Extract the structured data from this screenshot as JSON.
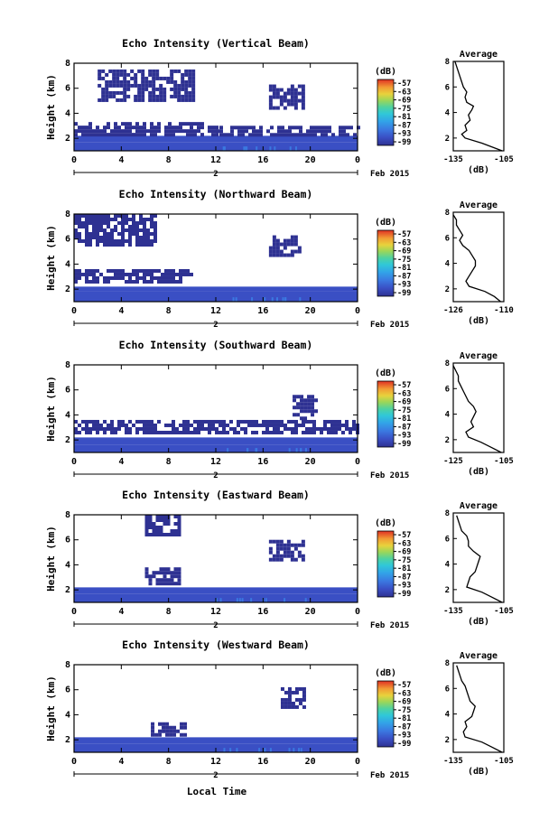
{
  "chart_data": [
    {
      "type": "heatmap",
      "title": "Echo Intensity (Vertical Beam)",
      "ylabel": "Height (km)",
      "xlabel": "",
      "x_ticks": [
        "0",
        "4",
        "8",
        "12",
        "16",
        "20",
        "0"
      ],
      "date_tick": "2",
      "date_label": "Feb 2015",
      "y_ticks": [
        "2",
        "4",
        "6",
        "8"
      ],
      "xlim": [
        0,
        24
      ],
      "ylim": [
        1,
        8
      ],
      "colorbar": {
        "unit": "(dB)",
        "ticks": [
          "-57",
          "-63",
          "-69",
          "-75",
          "-81",
          "-87",
          "-93",
          "-99"
        ]
      },
      "regions": [
        {
          "t": [
            0,
            24
          ],
          "h": [
            1.0,
            1.7
          ],
          "value": -93
        },
        {
          "t": [
            0,
            24
          ],
          "h": [
            1.7,
            2.2
          ],
          "value": -96
        },
        {
          "t": [
            0,
            12
          ],
          "h": [
            2.3,
            3.3
          ],
          "value": -98
        },
        {
          "t": [
            12,
            24
          ],
          "h": [
            2.4,
            3.0
          ],
          "value": -98
        },
        {
          "t": [
            2,
            10
          ],
          "h": [
            5.0,
            7.5
          ],
          "value": -98
        },
        {
          "t": [
            16.5,
            19.5
          ],
          "h": [
            4.5,
            6.3
          ],
          "value": -98
        }
      ],
      "average_profile": {
        "title": "Average",
        "xlabel": "(dB)",
        "x_ticks": [
          "-135",
          "-105"
        ],
        "y_ticks": [
          "2",
          "4",
          "6",
          "8"
        ],
        "xlim": [
          -135,
          -105
        ],
        "ylim": [
          1,
          8
        ],
        "height": [
          1,
          1.3,
          1.6,
          2.0,
          2.3,
          2.6,
          3.0,
          3.4,
          3.8,
          4.2,
          4.5,
          4.8,
          5.2,
          5.6,
          6.0,
          6.4,
          6.8,
          7.2,
          7.6,
          8.0
        ],
        "db": [
          -106,
          -112,
          -118,
          -128,
          -130,
          -127,
          -128,
          -125,
          -126,
          -124,
          -123,
          -127,
          -128,
          -127,
          -129,
          -130,
          -131,
          -132,
          -133,
          -134
        ]
      }
    },
    {
      "type": "heatmap",
      "title": "Echo Intensity (Northward Beam)",
      "ylabel": "Height (km)",
      "xlabel": "",
      "x_ticks": [
        "0",
        "4",
        "8",
        "12",
        "16",
        "20",
        "0"
      ],
      "date_tick": "2",
      "date_label": "Feb 2015",
      "y_ticks": [
        "2",
        "4",
        "6",
        "8"
      ],
      "xlim": [
        0,
        24
      ],
      "ylim": [
        1,
        8
      ],
      "colorbar": {
        "unit": "(dB)",
        "ticks": [
          "-57",
          "-63",
          "-69",
          "-75",
          "-81",
          "-87",
          "-93",
          "-99"
        ]
      },
      "regions": [
        {
          "t": [
            0,
            24
          ],
          "h": [
            1.0,
            1.8
          ],
          "value": -93
        },
        {
          "t": [
            0,
            24
          ],
          "h": [
            1.8,
            2.2
          ],
          "value": -96
        },
        {
          "t": [
            0,
            10
          ],
          "h": [
            2.5,
            3.6
          ],
          "value": -98
        },
        {
          "t": [
            0,
            7
          ],
          "h": [
            5.6,
            8.0
          ],
          "value": -98
        },
        {
          "t": [
            16.5,
            19.0
          ],
          "h": [
            4.6,
            6.3
          ],
          "value": -98
        }
      ],
      "average_profile": {
        "title": "Average",
        "xlabel": "(dB)",
        "x_ticks": [
          "-126",
          "-110"
        ],
        "y_ticks": [
          "2",
          "4",
          "6",
          "8"
        ],
        "xlim": [
          -126,
          -110
        ],
        "ylim": [
          1,
          8
        ],
        "height": [
          1,
          1.4,
          1.8,
          2.2,
          2.6,
          3.0,
          3.4,
          3.8,
          4.2,
          4.6,
          5.0,
          5.4,
          5.8,
          6.2,
          6.6,
          7.0,
          7.4,
          7.8
        ],
        "db": [
          -111,
          -113,
          -116,
          -121,
          -122,
          -121,
          -120,
          -119,
          -119,
          -120,
          -121,
          -123,
          -124,
          -123,
          -124,
          -125,
          -125,
          -126
        ]
      }
    },
    {
      "type": "heatmap",
      "title": "Echo Intensity (Southward Beam)",
      "ylabel": "Height (km)",
      "xlabel": "",
      "x_ticks": [
        "0",
        "4",
        "8",
        "12",
        "16",
        "20",
        "0"
      ],
      "date_tick": "2",
      "date_label": "Feb 2015",
      "y_ticks": [
        "2",
        "4",
        "6",
        "8"
      ],
      "xlim": [
        0,
        24
      ],
      "ylim": [
        1,
        8
      ],
      "colorbar": {
        "unit": "(dB)",
        "ticks": [
          "-57",
          "-63",
          "-69",
          "-75",
          "-81",
          "-87",
          "-93",
          "-99"
        ]
      },
      "regions": [
        {
          "t": [
            0,
            24
          ],
          "h": [
            1.0,
            1.6
          ],
          "value": -93
        },
        {
          "t": [
            0,
            24
          ],
          "h": [
            1.6,
            2.2
          ],
          "value": -96
        },
        {
          "t": [
            0,
            24
          ],
          "h": [
            2.6,
            3.6
          ],
          "value": -98
        },
        {
          "t": [
            18.5,
            20.5
          ],
          "h": [
            3.6,
            5.6
          ],
          "value": -98
        }
      ],
      "average_profile": {
        "title": "Average",
        "xlabel": "(dB)",
        "x_ticks": [
          "-125",
          "-105"
        ],
        "y_ticks": [
          "2",
          "4",
          "6",
          "8"
        ],
        "xlim": [
          -125,
          -105
        ],
        "ylim": [
          1,
          8
        ],
        "height": [
          1,
          1.4,
          1.8,
          2.2,
          2.6,
          3.0,
          3.4,
          3.8,
          4.2,
          4.6,
          5.0,
          5.4,
          5.8,
          6.2,
          6.6,
          7.0,
          7.4,
          7.8
        ],
        "db": [
          -106,
          -110,
          -114,
          -119,
          -120,
          -117,
          -118,
          -117,
          -116,
          -117,
          -119,
          -120,
          -121,
          -122,
          -123,
          -123,
          -124,
          -125
        ]
      }
    },
    {
      "type": "heatmap",
      "title": "Echo Intensity (Eastward Beam)",
      "ylabel": "Height (km)",
      "xlabel": "",
      "x_ticks": [
        "0",
        "4",
        "8",
        "12",
        "16",
        "20",
        "0"
      ],
      "date_tick": "2",
      "date_label": "Feb 2015",
      "y_ticks": [
        "2",
        "4",
        "6",
        "8"
      ],
      "xlim": [
        0,
        24
      ],
      "ylim": [
        1,
        8
      ],
      "colorbar": {
        "unit": "(dB)",
        "ticks": [
          "-57",
          "-63",
          "-69",
          "-75",
          "-81",
          "-87",
          "-93",
          "-99"
        ]
      },
      "regions": [
        {
          "t": [
            0,
            24
          ],
          "h": [
            1.0,
            1.7
          ],
          "value": -93
        },
        {
          "t": [
            0,
            24
          ],
          "h": [
            1.7,
            2.2
          ],
          "value": -96
        },
        {
          "t": [
            6,
            9
          ],
          "h": [
            2.6,
            3.8
          ],
          "value": -98
        },
        {
          "t": [
            6,
            9
          ],
          "h": [
            6.5,
            8.0
          ],
          "value": -98
        },
        {
          "t": [
            16.5,
            19.5
          ],
          "h": [
            4.5,
            6.0
          ],
          "value": -98
        }
      ],
      "average_profile": {
        "title": "Average",
        "xlabel": "(dB)",
        "x_ticks": [
          "-135",
          "-105"
        ],
        "y_ticks": [
          "2",
          "4",
          "6",
          "8"
        ],
        "xlim": [
          -135,
          -105
        ],
        "ylim": [
          1,
          8
        ],
        "height": [
          1,
          1.4,
          1.8,
          2.2,
          2.6,
          3.0,
          3.4,
          3.8,
          4.2,
          4.6,
          5.0,
          5.4,
          5.8,
          6.2,
          6.6,
          7.0,
          7.4,
          7.8
        ],
        "db": [
          -106,
          -112,
          -118,
          -127,
          -126,
          -125,
          -122,
          -121,
          -120,
          -119,
          -123,
          -126,
          -126,
          -127,
          -130,
          -131,
          -132,
          -133
        ]
      }
    },
    {
      "type": "heatmap",
      "title": "Echo Intensity (Westward Beam)",
      "ylabel": "Height (km)",
      "xlabel": "Local Time",
      "x_ticks": [
        "0",
        "4",
        "8",
        "12",
        "16",
        "20",
        "0"
      ],
      "date_tick": "2",
      "date_label": "Feb 2015",
      "y_ticks": [
        "2",
        "4",
        "6",
        "8"
      ],
      "xlim": [
        0,
        24
      ],
      "ylim": [
        1,
        8
      ],
      "colorbar": {
        "unit": "(dB)",
        "ticks": [
          "-57",
          "-63",
          "-69",
          "-75",
          "-81",
          "-87",
          "-93",
          "-99"
        ]
      },
      "regions": [
        {
          "t": [
            0,
            24
          ],
          "h": [
            1.0,
            1.7
          ],
          "value": -93
        },
        {
          "t": [
            0,
            24
          ],
          "h": [
            1.7,
            2.2
          ],
          "value": -96
        },
        {
          "t": [
            6.5,
            9.5
          ],
          "h": [
            2.4,
            3.4
          ],
          "value": -98
        },
        {
          "t": [
            17.5,
            19.5
          ],
          "h": [
            4.5,
            6.2
          ],
          "value": -98
        }
      ],
      "average_profile": {
        "title": "Average",
        "xlabel": "(dB)",
        "x_ticks": [
          "-135",
          "-105"
        ],
        "y_ticks": [
          "2",
          "4",
          "6",
          "8"
        ],
        "xlim": [
          -135,
          -105
        ],
        "ylim": [
          1,
          8
        ],
        "height": [
          1,
          1.4,
          1.8,
          2.2,
          2.6,
          3.0,
          3.4,
          3.8,
          4.2,
          4.6,
          5.0,
          5.4,
          5.8,
          6.2,
          6.6,
          7.0,
          7.4,
          7.8
        ],
        "db": [
          -106,
          -112,
          -118,
          -128,
          -129,
          -127,
          -128,
          -124,
          -123,
          -122,
          -125,
          -126,
          -127,
          -128,
          -130,
          -131,
          -132,
          -133
        ]
      }
    }
  ],
  "colors": {
    "colormap": [
      "#2e3192",
      "#3a4fc4",
      "#3b78e0",
      "#32a2e8",
      "#30c8d8",
      "#4fd2a0",
      "#9ad65a",
      "#e8d23c",
      "#f29d34",
      "#ee5a2c",
      "#e03024"
    ],
    "plot_background": "#ffffff",
    "axis": "#000000"
  }
}
